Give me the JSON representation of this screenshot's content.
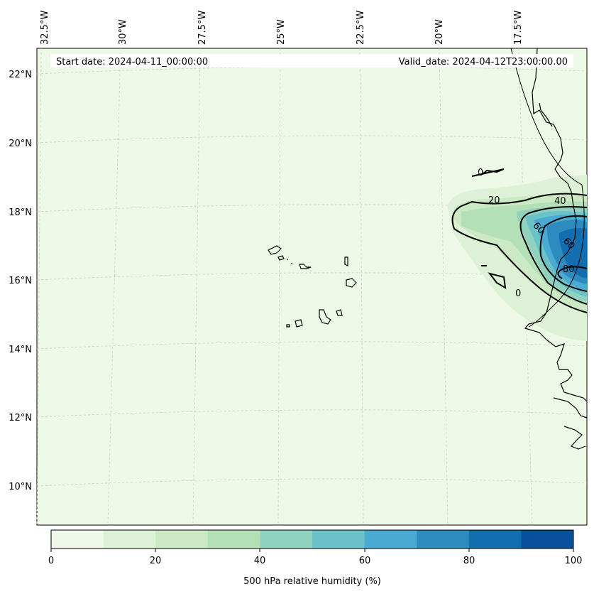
{
  "map": {
    "start_date_text": "Start date: 2024-04-11_00:00:00",
    "valid_date_text": "Valid_date: 2024-04-12T23:00:00.00",
    "lon_labels": [
      "32.5°W",
      "30°W",
      "27.5°W",
      "25°W",
      "22.5°W",
      "20°W",
      "17.5°W"
    ],
    "lat_labels": [
      "22°N",
      "20°N",
      "18°N",
      "16°N",
      "14°N",
      "12°N",
      "10°N"
    ],
    "contour_labels": [
      "20",
      "40",
      "60",
      "60",
      "80",
      "0",
      "0"
    ],
    "background_color": "#eef8e6",
    "gridlines": true
  },
  "colorbar": {
    "title": "500 hPa relative humidity (%)",
    "ticks": [
      "0",
      "20",
      "40",
      "60",
      "80",
      "100"
    ],
    "levels": [
      0,
      10,
      20,
      30,
      40,
      50,
      60,
      70,
      80,
      90,
      100
    ],
    "colors": [
      "#eff8e8",
      "#ddf1d6",
      "#cbeac4",
      "#b3e0b6",
      "#8ed2bf",
      "#6bc2c8",
      "#4aaad1",
      "#2d8bc0",
      "#136eb0",
      "#08509a"
    ]
  },
  "chart_data": {
    "type": "heatmap",
    "variable": "500 hPa relative humidity (%)",
    "range": [
      0,
      100
    ],
    "contour_levels": [
      0,
      20,
      40,
      60,
      80
    ],
    "lon_ticks": [
      "32.5°W",
      "30°W",
      "27.5°W",
      "25°W",
      "22.5°W",
      "20°W",
      "17.5°W"
    ],
    "lat_ticks": [
      "22°N",
      "20°N",
      "18°N",
      "16°N",
      "14°N",
      "12°N",
      "10°N"
    ]
  }
}
